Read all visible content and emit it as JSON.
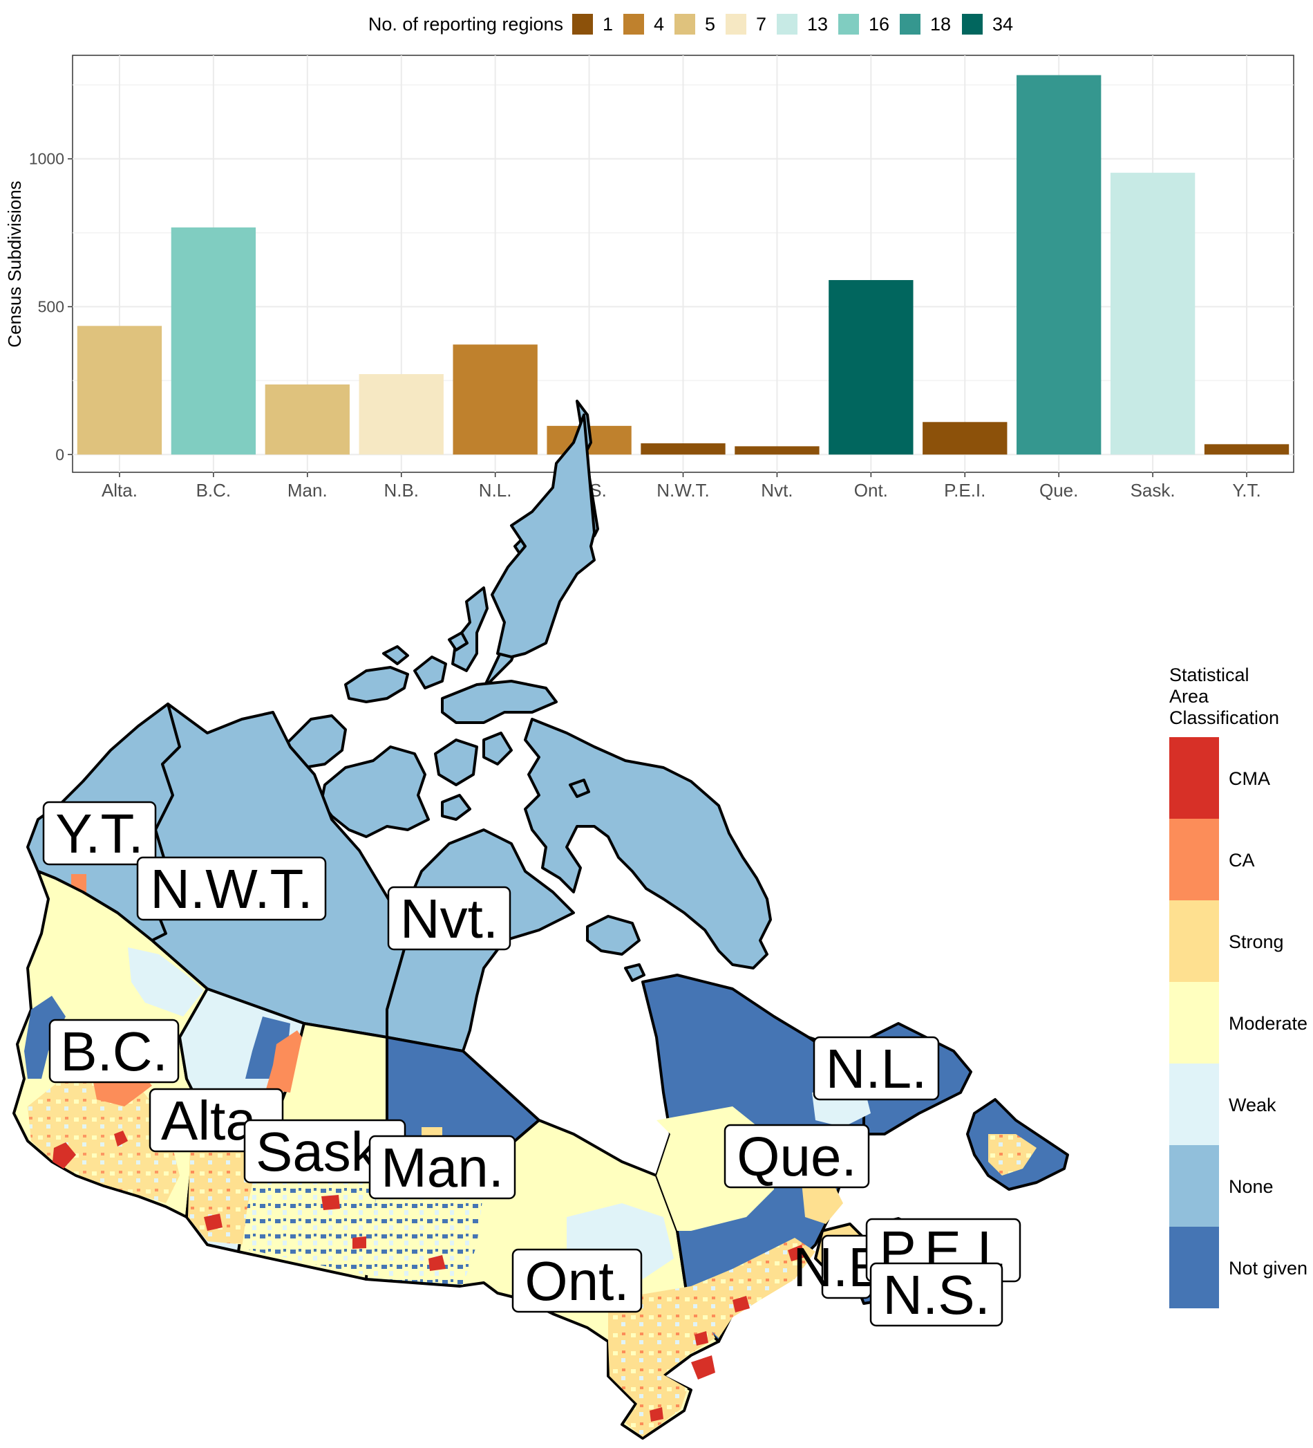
{
  "chart_data": [
    {
      "type": "bar",
      "title": "",
      "xlabel": "",
      "ylabel": "Census Subdivisions",
      "ylim": [
        -60,
        1350
      ],
      "yticks": [
        0,
        500,
        1000
      ],
      "grid": true,
      "legend": {
        "title": "No. of reporting regions",
        "placement": "top",
        "entries": [
          {
            "label": "1",
            "color": "#8c510a"
          },
          {
            "label": "4",
            "color": "#bf812d"
          },
          {
            "label": "5",
            "color": "#dfc27d"
          },
          {
            "label": "7",
            "color": "#f6e8c3"
          },
          {
            "label": "13",
            "color": "#c7eae5"
          },
          {
            "label": "16",
            "color": "#80cdc1"
          },
          {
            "label": "18",
            "color": "#35978f"
          },
          {
            "label": "34",
            "color": "#01665e"
          }
        ]
      },
      "categories": [
        "Alta.",
        "B.C.",
        "Man.",
        "N.B.",
        "N.L.",
        "N.S.",
        "N.W.T.",
        "Nvt.",
        "Ont.",
        "P.E.I.",
        "Que.",
        "Sask.",
        "Y.T."
      ],
      "values": [
        435,
        768,
        237,
        272,
        372,
        97,
        38,
        28,
        590,
        110,
        1283,
        953,
        35
      ],
      "reporting_regions": [
        "5",
        "16",
        "5",
        "7",
        "4",
        "4",
        "1",
        "1",
        "34",
        "1",
        "18",
        "13",
        "1"
      ]
    },
    {
      "type": "map",
      "region_labels": [
        "Y.T.",
        "N.W.T.",
        "Nvt.",
        "B.C.",
        "Alta.",
        "Sask.",
        "Man.",
        "Ont.",
        "Que.",
        "N.L.",
        "N.B.",
        "P.E.I.",
        "N.S."
      ],
      "legend": {
        "title": [
          "Statistical",
          "Area",
          "Classification"
        ],
        "placement": "right",
        "entries": [
          {
            "label": "CMA",
            "color": "#d73027"
          },
          {
            "label": "CA",
            "color": "#fc8d59"
          },
          {
            "label": "Strong",
            "color": "#fee090"
          },
          {
            "label": "Moderate",
            "color": "#ffffbf"
          },
          {
            "label": "Weak",
            "color": "#e0f3f8"
          },
          {
            "label": "None",
            "color": "#91bfdb"
          },
          {
            "label": "Not given",
            "color": "#4575b4"
          }
        ]
      }
    }
  ]
}
